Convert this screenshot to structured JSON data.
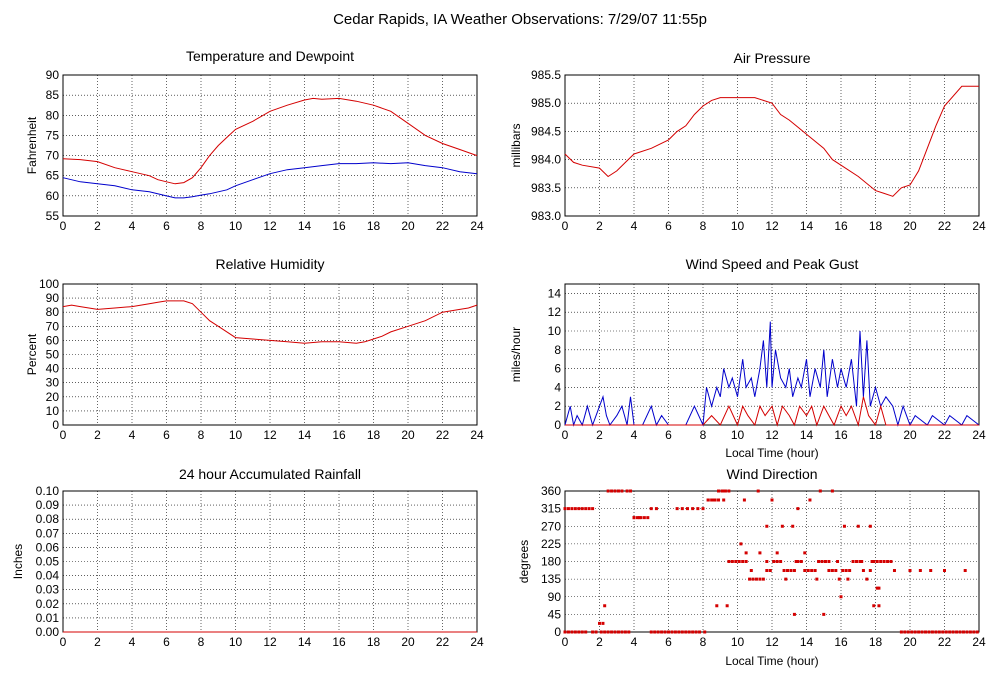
{
  "page_title": "Cedar Rapids, IA Weather Observations: 7/29/07 11:55p",
  "colors": {
    "red": "#d40000",
    "blue": "#0000cc"
  },
  "chart_data": [
    {
      "id": "temp",
      "type": "line",
      "title": "Temperature and Dewpoint",
      "xlabel": "",
      "ylabel": "Fahrenheit",
      "xlim": [
        0,
        24
      ],
      "ylim": [
        55,
        90
      ],
      "xticks": [
        0,
        2,
        4,
        6,
        8,
        10,
        12,
        14,
        16,
        18,
        20,
        22,
        24
      ],
      "yticks": [
        55,
        60,
        65,
        70,
        75,
        80,
        85,
        90
      ],
      "series": [
        {
          "color": "#d40000",
          "x": [
            0,
            1,
            2,
            3,
            4,
            5,
            5.5,
            6,
            6.5,
            7,
            7.5,
            8,
            8.5,
            9,
            9.5,
            10,
            11,
            12,
            13,
            14,
            14.5,
            15,
            16,
            17,
            18,
            19,
            20,
            21,
            22,
            23,
            24
          ],
          "y": [
            69.2,
            69,
            68.5,
            67,
            66,
            65,
            64,
            63.5,
            63,
            63.3,
            64.5,
            67,
            70,
            72.5,
            74.5,
            76.5,
            78.5,
            81,
            82.5,
            83.8,
            84.2,
            84,
            84.2,
            83.5,
            82.5,
            81,
            78,
            75,
            73,
            71.5,
            70
          ]
        },
        {
          "color": "#0000cc",
          "x": [
            0,
            1,
            2,
            3,
            4,
            5,
            6,
            6.5,
            7,
            7.5,
            8,
            8.5,
            9,
            9.5,
            10,
            11,
            12,
            13,
            14,
            15,
            16,
            17,
            18,
            19,
            20,
            21,
            22,
            23,
            24
          ],
          "y": [
            64.5,
            63.5,
            63,
            62.5,
            61.5,
            61,
            60,
            59.5,
            59.5,
            59.8,
            60.2,
            60.5,
            61,
            61.5,
            62.5,
            64,
            65.5,
            66.5,
            67,
            67.5,
            68,
            68,
            68.2,
            68,
            68.2,
            67.5,
            67,
            66,
            65.5
          ]
        }
      ]
    },
    {
      "id": "pressure",
      "type": "line",
      "title": "Air Pressure",
      "xlabel": "",
      "ylabel": "millibars",
      "xlim": [
        0,
        24
      ],
      "ylim": [
        983.0,
        985.5
      ],
      "xticks": [
        0,
        2,
        4,
        6,
        8,
        10,
        12,
        14,
        16,
        18,
        20,
        22,
        24
      ],
      "yticks": [
        983.0,
        983.5,
        984.0,
        984.5,
        985.0,
        985.5
      ],
      "ytick_labels": [
        "983.0",
        "983.5",
        "984.0",
        "984.5",
        "985.0",
        "985.5"
      ],
      "series": [
        {
          "color": "#d40000",
          "x": [
            0,
            0.5,
            1,
            2,
            2.5,
            3,
            3.5,
            4,
            5,
            6,
            6.5,
            7,
            7.5,
            8,
            8.5,
            9,
            10,
            11,
            12,
            12.5,
            13,
            14,
            15,
            15.5,
            16,
            17,
            18,
            18.5,
            19,
            19.5,
            20,
            20.5,
            21,
            21.5,
            22,
            23,
            24
          ],
          "y": [
            984.1,
            983.95,
            983.9,
            983.85,
            983.7,
            983.8,
            983.95,
            984.1,
            984.2,
            984.35,
            984.5,
            984.6,
            984.8,
            984.95,
            985.05,
            985.1,
            985.1,
            985.1,
            985.0,
            984.8,
            984.7,
            984.45,
            984.2,
            984.0,
            983.9,
            983.7,
            983.45,
            983.4,
            983.35,
            983.5,
            983.55,
            983.8,
            984.2,
            984.6,
            984.95,
            985.3,
            985.3
          ]
        }
      ]
    },
    {
      "id": "humidity",
      "type": "line",
      "title": "Relative Humidity",
      "xlabel": "",
      "ylabel": "Percent",
      "xlim": [
        0,
        24
      ],
      "ylim": [
        0,
        100
      ],
      "xticks": [
        0,
        2,
        4,
        6,
        8,
        10,
        12,
        14,
        16,
        18,
        20,
        22,
        24
      ],
      "yticks": [
        0,
        10,
        20,
        30,
        40,
        50,
        60,
        70,
        80,
        90,
        100
      ],
      "series": [
        {
          "color": "#d40000",
          "x": [
            0,
            0.5,
            1,
            2,
            3,
            4,
            5,
            5.5,
            6,
            7,
            7.5,
            8,
            8.5,
            9,
            9.5,
            10,
            11,
            12,
            13,
            14,
            15,
            16,
            17,
            17.5,
            18,
            18.5,
            19,
            20,
            21,
            22,
            23,
            23.5,
            24
          ],
          "y": [
            84,
            85,
            84,
            82,
            83,
            84,
            86,
            87,
            88,
            88,
            86,
            80,
            74,
            70,
            66,
            62,
            61,
            60,
            59,
            58,
            59,
            59,
            58,
            59,
            61,
            63,
            66,
            70,
            74,
            80,
            82,
            83,
            85
          ]
        }
      ]
    },
    {
      "id": "wind",
      "type": "line",
      "title": "Wind Speed and Peak Gust",
      "xlabel": "Local Time (hour)",
      "ylabel": "miles/hour",
      "xlim": [
        0,
        24
      ],
      "ylim": [
        0,
        15
      ],
      "xticks": [
        0,
        2,
        4,
        6,
        8,
        10,
        12,
        14,
        16,
        18,
        20,
        22,
        24
      ],
      "yticks": [
        0,
        2,
        4,
        6,
        8,
        10,
        12,
        14
      ],
      "series": [
        {
          "color": "#0000cc",
          "x": [
            0,
            0.3,
            0.5,
            0.7,
            1,
            1.3,
            1.6,
            2,
            2.2,
            2.4,
            2.6,
            3,
            3.3,
            3.6,
            3.8,
            4,
            4.5,
            5,
            5.3,
            5.6,
            6,
            6.5,
            7,
            7.5,
            8,
            8.2,
            8.5,
            8.8,
            9,
            9.2,
            9.5,
            9.7,
            10,
            10.3,
            10.5,
            10.8,
            11,
            11.3,
            11.5,
            11.7,
            11.9,
            12,
            12.2,
            12.5,
            12.8,
            13,
            13.2,
            13.5,
            13.7,
            14,
            14.2,
            14.5,
            14.8,
            15,
            15.2,
            15.5,
            15.8,
            16,
            16.3,
            16.6,
            16.9,
            17.1,
            17.3,
            17.5,
            17.7,
            18,
            18.3,
            18.6,
            19,
            19.3,
            19.6,
            20,
            20.3,
            21,
            21.3,
            22,
            22.3,
            23,
            23.3,
            24
          ],
          "y": [
            0,
            2,
            0,
            1,
            0,
            2,
            0,
            2,
            3,
            1,
            0,
            1,
            2,
            0,
            3,
            0,
            0,
            2,
            0,
            1,
            0,
            0,
            0,
            2,
            0,
            4,
            2,
            4,
            3,
            6,
            4,
            5,
            3,
            7,
            4,
            5,
            3,
            6,
            9,
            4,
            11,
            4,
            8,
            5,
            4,
            6,
            3,
            5,
            4,
            7,
            3,
            6,
            4,
            8,
            3,
            7,
            4,
            6,
            4,
            7,
            2,
            10,
            3,
            9,
            2,
            4,
            2,
            3,
            2,
            0,
            2,
            0,
            1,
            0,
            1,
            0,
            1,
            0,
            1,
            0
          ]
        },
        {
          "color": "#d40000",
          "x": [
            0,
            8,
            8.5,
            9,
            9.5,
            10,
            10.3,
            10.6,
            11,
            11.3,
            11.6,
            12,
            12.3,
            12.6,
            13,
            13.3,
            13.6,
            14,
            14.3,
            14.6,
            15,
            15.3,
            15.6,
            16,
            16.3,
            16.6,
            17,
            17.3,
            17.6,
            18,
            18.3,
            18.6,
            19,
            24
          ],
          "y": [
            0,
            0,
            1,
            0,
            2,
            0,
            2,
            1,
            0,
            2,
            1,
            2,
            0,
            2,
            1,
            0,
            2,
            1,
            2,
            0,
            2,
            1,
            0,
            2,
            1,
            2,
            0,
            3,
            1,
            0,
            2,
            0,
            0,
            0
          ]
        }
      ]
    },
    {
      "id": "rain",
      "type": "line",
      "title": "24 hour Accumulated Rainfall",
      "xlabel": "",
      "ylabel": "Inches",
      "xlim": [
        0,
        24
      ],
      "ylim": [
        0,
        0.1
      ],
      "xticks": [
        0,
        2,
        4,
        6,
        8,
        10,
        12,
        14,
        16,
        18,
        20,
        22,
        24
      ],
      "yticks": [
        0,
        0.01,
        0.02,
        0.03,
        0.04,
        0.05,
        0.06,
        0.07,
        0.08,
        0.09,
        0.1
      ],
      "ytick_labels": [
        "0.00",
        "0.01",
        "0.02",
        "0.03",
        "0.04",
        "0.05",
        "0.06",
        "0.07",
        "0.08",
        "0.09",
        "0.10"
      ],
      "series": [
        {
          "color": "#d40000",
          "x": [
            0,
            24
          ],
          "y": [
            0,
            0
          ]
        }
      ]
    },
    {
      "id": "direction",
      "type": "scatter",
      "title": "Wind Direction",
      "xlabel": "Local Time (hour)",
      "ylabel": "degrees",
      "xlim": [
        0,
        24
      ],
      "ylim": [
        0,
        360
      ],
      "xticks": [
        0,
        2,
        4,
        6,
        8,
        10,
        12,
        14,
        16,
        18,
        20,
        22,
        24
      ],
      "yticks": [
        0,
        45,
        90,
        135,
        180,
        225,
        270,
        315,
        360
      ],
      "series": [
        {
          "color": "#d40000",
          "x": [
            0,
            0.2,
            0.4,
            0.6,
            0.8,
            1,
            1.2,
            1.4,
            1.6,
            0,
            0.2,
            0.4,
            0.6,
            0.8,
            1,
            1.2,
            1.6,
            1.8,
            2,
            2.2,
            2.1,
            2.3,
            2.5,
            2.7,
            2.9,
            3.1,
            3.3,
            3.5,
            3.7,
            2.5,
            2.7,
            2.9,
            3.1,
            3.3,
            3.6,
            3.8,
            4.0,
            4.2,
            4.4,
            4.6,
            4.8,
            5.0,
            5.2,
            5.4,
            5.6,
            5.8,
            6.0,
            6.2,
            6.4,
            6.6,
            6.8,
            7.0,
            7.2,
            7.4,
            7.6,
            7.8,
            5.0,
            5.3,
            6.5,
            6.8,
            7.1,
            7.4,
            7.7,
            8.0,
            8.3,
            8.5,
            8.7,
            8.9,
            9.1,
            9.3,
            9.5,
            8.3,
            8.6,
            8.9,
            9.2,
            9.5,
            9.7,
            9.9,
            10.1,
            10.3,
            10.5,
            10.7,
            10.9,
            11.1,
            11.3,
            11.5,
            11.7,
            11.9,
            12.1,
            12.3,
            12.5,
            12.7,
            12.9,
            13.1,
            13.3,
            13.5,
            13.7,
            13.9,
            14.1,
            14.3,
            14.5,
            14.7,
            14.9,
            15.1,
            15.3,
            15.5,
            15.7,
            15.9,
            16.1,
            16.3,
            16.5,
            16.7,
            16.9,
            17.1,
            17.3,
            17.5,
            17.7,
            17.9,
            18.1,
            18.3,
            18.5,
            18.7,
            18.9,
            19.1,
            10.2,
            10.5,
            10.8,
            11.3,
            11.7,
            12.3,
            12.8,
            13.4,
            13.9,
            14.6,
            15.3,
            15.8,
            16.4,
            17.2,
            17.8,
            18.2,
            19.5,
            19.7,
            19.9,
            20.1,
            20.3,
            20.5,
            20.7,
            20.9,
            21.1,
            21.3,
            21.5,
            21.7,
            21.9,
            22.1,
            22.3,
            22.5,
            22.7,
            22.9,
            23.1,
            23.3,
            23.5,
            23.7,
            23.9,
            20.0,
            20.6,
            21.2,
            22.0,
            23.2,
            8.7,
            9.2,
            10.4,
            11.2,
            12.0,
            12.6,
            13.2,
            14.2,
            14.8,
            15.5,
            16.2,
            17.0,
            17.7,
            18.1,
            9.4,
            13.3,
            16.0,
            17.9,
            18.2,
            4.0,
            4.3,
            2.3,
            8.1,
            8.8,
            11.7,
            13.5,
            15.0
          ],
          "y": [
            315,
            315,
            315,
            315,
            315,
            315,
            315,
            315,
            315,
            0,
            0,
            0,
            0,
            0,
            0,
            0,
            0,
            0,
            22,
            22,
            0,
            0,
            0,
            0,
            0,
            0,
            0,
            0,
            0,
            360,
            360,
            360,
            360,
            360,
            360,
            360,
            292,
            292,
            292,
            292,
            292,
            0,
            0,
            0,
            0,
            0,
            0,
            0,
            0,
            0,
            0,
            0,
            0,
            0,
            0,
            0,
            315,
            315,
            315,
            315,
            315,
            315,
            315,
            315,
            337,
            337,
            337,
            360,
            360,
            360,
            180,
            337,
            337,
            337,
            360,
            360,
            180,
            180,
            180,
            180,
            180,
            135,
            135,
            135,
            135,
            135,
            157,
            157,
            180,
            180,
            180,
            157,
            157,
            157,
            157,
            180,
            180,
            157,
            157,
            157,
            157,
            180,
            180,
            180,
            157,
            157,
            157,
            135,
            157,
            157,
            157,
            180,
            180,
            180,
            157,
            135,
            157,
            180,
            180,
            180,
            180,
            180,
            180,
            157,
            225,
            202,
            157,
            202,
            180,
            202,
            135,
            180,
            202,
            135,
            180,
            180,
            135,
            180,
            180,
            112,
            0,
            0,
            0,
            0,
            0,
            0,
            0,
            0,
            0,
            0,
            0,
            0,
            0,
            0,
            0,
            0,
            0,
            0,
            0,
            0,
            0,
            0,
            0,
            157,
            157,
            157,
            157,
            157,
            337,
            337,
            337,
            360,
            337,
            270,
            270,
            337,
            360,
            360,
            270,
            270,
            270,
            112,
            67,
            45,
            90,
            67,
            67,
            292,
            292,
            67,
            0,
            67,
            270,
            315,
            45
          ]
        }
      ]
    }
  ]
}
